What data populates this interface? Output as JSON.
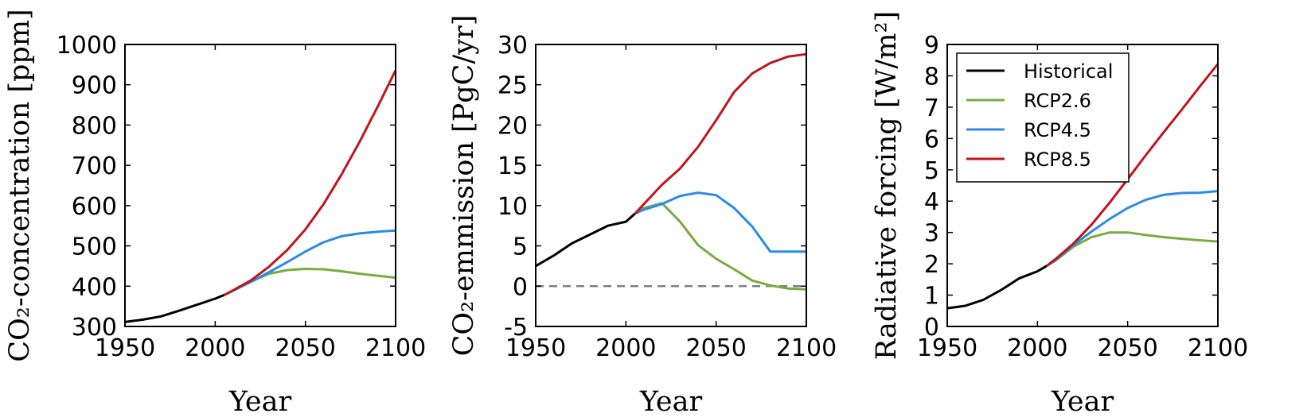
{
  "colors": {
    "Historical": "#000000",
    "RCP2.6": "#77ac3f",
    "RCP4.5": "#2a8be7",
    "RCP8.5": "#c0141c",
    "zero_line": "#808080"
  },
  "chart_data": [
    {
      "type": "line",
      "xlabel": "Year",
      "ylabel": "CO₂-concentration [ppm]",
      "xlim": [
        1950,
        2100
      ],
      "ylim": [
        300,
        1000
      ],
      "xticks": [
        1950,
        2000,
        2050,
        2100
      ],
      "yticks": [
        300,
        400,
        500,
        600,
        700,
        800,
        900,
        1000
      ],
      "grid": false,
      "series": [
        {
          "name": "Historical",
          "x": [
            1950,
            1960,
            1970,
            1980,
            1990,
            2000,
            2005
          ],
          "y": [
            311,
            317,
            325,
            339,
            354,
            369,
            378
          ]
        },
        {
          "name": "RCP2.6",
          "x": [
            2005,
            2010,
            2020,
            2030,
            2040,
            2050,
            2060,
            2070,
            2080,
            2090,
            2100
          ],
          "y": [
            378,
            389,
            412,
            431,
            440,
            443,
            442,
            437,
            431,
            426,
            421
          ]
        },
        {
          "name": "RCP4.5",
          "x": [
            2005,
            2010,
            2020,
            2030,
            2040,
            2050,
            2060,
            2070,
            2080,
            2090,
            2100
          ],
          "y": [
            378,
            389,
            411,
            435,
            460,
            486,
            509,
            524,
            531,
            535,
            538
          ]
        },
        {
          "name": "RCP8.5",
          "x": [
            2005,
            2010,
            2020,
            2030,
            2040,
            2050,
            2060,
            2070,
            2080,
            2090,
            2100
          ],
          "y": [
            378,
            390,
            415,
            449,
            490,
            541,
            603,
            677,
            758,
            845,
            936
          ]
        }
      ]
    },
    {
      "type": "line",
      "xlabel": "Year",
      "ylabel": "CO₂-emmission [PgC/yr]",
      "xlim": [
        1950,
        2100
      ],
      "ylim": [
        -5,
        30
      ],
      "xticks": [
        1950,
        2000,
        2050,
        2100
      ],
      "yticks": [
        -5,
        0,
        5,
        10,
        15,
        20,
        25,
        30
      ],
      "grid": false,
      "reference_line": {
        "y": 0,
        "style": "dashed"
      },
      "series": [
        {
          "name": "Historical",
          "x": [
            1950,
            1960,
            1970,
            1980,
            1990,
            2000,
            2005
          ],
          "y": [
            2.5,
            3.8,
            5.3,
            6.4,
            7.5,
            8.0,
            9.0
          ]
        },
        {
          "name": "RCP2.6",
          "x": [
            2005,
            2010,
            2020,
            2030,
            2040,
            2050,
            2060,
            2070,
            2080,
            2090,
            2100
          ],
          "y": [
            9.0,
            9.7,
            10.3,
            8.0,
            5.1,
            3.4,
            2.1,
            0.7,
            0.1,
            -0.3,
            -0.4
          ]
        },
        {
          "name": "RCP4.5",
          "x": [
            2005,
            2010,
            2020,
            2030,
            2040,
            2050,
            2060,
            2070,
            2080,
            2090,
            2100
          ],
          "y": [
            9.0,
            9.5,
            10.2,
            11.2,
            11.6,
            11.3,
            9.7,
            7.4,
            4.3,
            4.3,
            4.3
          ]
        },
        {
          "name": "RCP8.5",
          "x": [
            2005,
            2010,
            2020,
            2030,
            2040,
            2050,
            2060,
            2070,
            2080,
            2090,
            2100
          ],
          "y": [
            9.0,
            10.2,
            12.6,
            14.6,
            17.3,
            20.6,
            24.1,
            26.4,
            27.7,
            28.5,
            28.8
          ]
        }
      ]
    },
    {
      "type": "line",
      "xlabel": "Year",
      "ylabel": "Radiative forcing [W/m²]",
      "xlim": [
        1950,
        2100
      ],
      "ylim": [
        0,
        9
      ],
      "xticks": [
        1950,
        2000,
        2050,
        2100
      ],
      "yticks": [
        0,
        1,
        2,
        3,
        4,
        5,
        6,
        7,
        8,
        9
      ],
      "grid": false,
      "legend": {
        "position": "top-left",
        "entries": [
          "Historical",
          "RCP2.6",
          "RCP4.5",
          "RCP8.5"
        ]
      },
      "series": [
        {
          "name": "Historical",
          "x": [
            1950,
            1960,
            1970,
            1980,
            1990,
            2000,
            2005
          ],
          "y": [
            0.58,
            0.66,
            0.85,
            1.17,
            1.54,
            1.76,
            1.93
          ]
        },
        {
          "name": "RCP2.6",
          "x": [
            2005,
            2010,
            2020,
            2030,
            2040,
            2050,
            2060,
            2070,
            2080,
            2090,
            2100
          ],
          "y": [
            1.93,
            2.1,
            2.55,
            2.85,
            3.0,
            3.0,
            2.92,
            2.85,
            2.8,
            2.75,
            2.71
          ]
        },
        {
          "name": "RCP4.5",
          "x": [
            2005,
            2010,
            2020,
            2030,
            2040,
            2050,
            2060,
            2070,
            2080,
            2090,
            2100
          ],
          "y": [
            1.93,
            2.12,
            2.6,
            3.03,
            3.43,
            3.78,
            4.04,
            4.2,
            4.26,
            4.27,
            4.32
          ]
        },
        {
          "name": "RCP8.5",
          "x": [
            2005,
            2010,
            2020,
            2030,
            2040,
            2050,
            2060,
            2070,
            2080,
            2090,
            2100
          ],
          "y": [
            1.93,
            2.15,
            2.65,
            3.25,
            3.95,
            4.7,
            5.46,
            6.2,
            6.92,
            7.66,
            8.38
          ]
        }
      ]
    }
  ]
}
